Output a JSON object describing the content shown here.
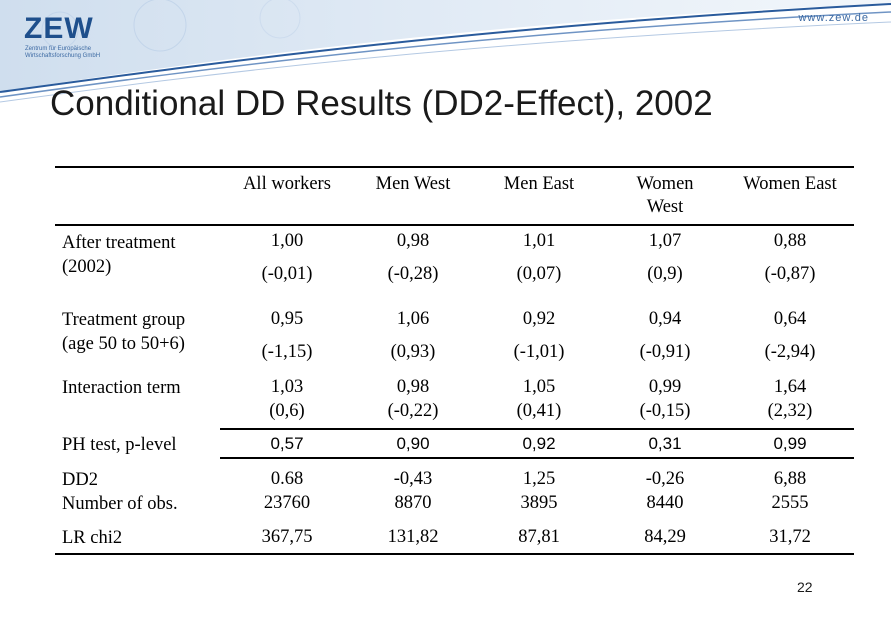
{
  "header": {
    "logo": "ZEW",
    "logo_sub": "Zentrum für Europäische Wirtschaftsforschung GmbH",
    "url": "www.zew.de"
  },
  "title": "Conditional DD Results (DD2-Effect), 2002",
  "columns": [
    "All workers",
    "Men West",
    "Men   East",
    "Women West",
    "Women East"
  ],
  "rows": {
    "after": {
      "label": "After treatment (2002)",
      "coef": [
        "1,00",
        "0,98",
        "1,01",
        "1,07",
        "0,88"
      ],
      "t": [
        "(-0,01)",
        "(-0,28)",
        "(0,07)",
        "(0,9)",
        "(-0,87)"
      ]
    },
    "treat": {
      "label": "Treatment group (age 50 to 50+6)",
      "coef": [
        "0,95",
        "1,06",
        "0,92",
        "0,94",
        "0,64"
      ],
      "t": [
        "(-1,15)",
        "(0,93)",
        "(-1,01)",
        "(-0,91)",
        "(-2,94)"
      ]
    },
    "inter": {
      "label": "Interaction term",
      "coef": [
        "1,03",
        "0,98",
        "1,05",
        "0,99",
        "1,64"
      ],
      "t": [
        "(0,6)",
        "(-0,22)",
        "(0,41)",
        "(-0,15)",
        "(2,32)"
      ]
    },
    "ph": {
      "label": "PH test, p-level",
      "values": [
        "0,57",
        "0,90",
        "0,92",
        "0,31",
        "0,99"
      ]
    },
    "dd2": {
      "label": "DD2",
      "values": [
        "0.68",
        "-0,43",
        "1,25",
        "-0,26",
        "6,88"
      ]
    },
    "nobs": {
      "label": "Number of obs.",
      "values": [
        "23760",
        "8870",
        "3895",
        "8440",
        "2555"
      ]
    },
    "lr": {
      "label": "LR chi2",
      "values": [
        "367,75",
        "131,82",
        "87,81",
        "84,29",
        "31,72"
      ]
    }
  },
  "page_number": "22",
  "colors": {
    "brand": "#1e4f8c",
    "banner_light": "#dbe7f3"
  }
}
